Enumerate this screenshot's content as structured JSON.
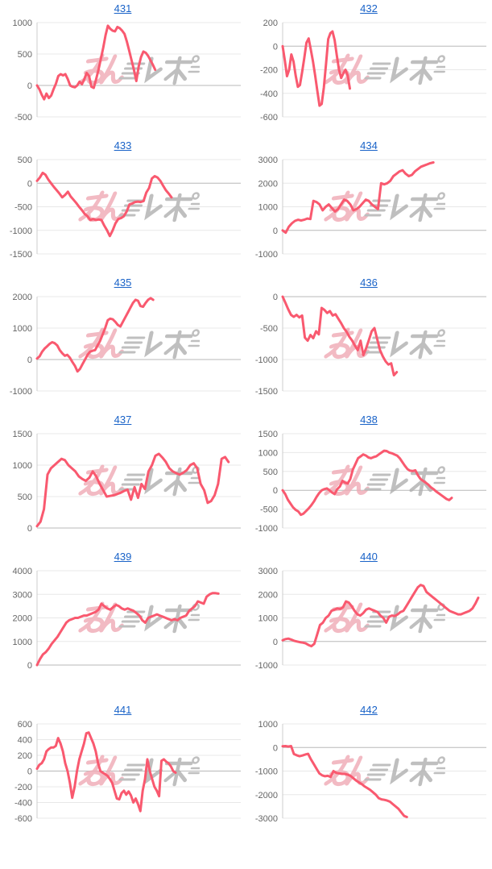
{
  "style": {
    "line_color": "#f9596f",
    "title_color": "#1a63c8",
    "axis_label_color": "#666666",
    "grid_color": "#e8e8e8",
    "zero_line_color": "#b8b8b8",
    "spine_color": "#cccccc",
    "watermark_pink": "#f0aab5",
    "watermark_gray": "#b0b0b0"
  },
  "watermark": {
    "text": "みんレポ"
  },
  "chart_data": [
    {
      "type": "line",
      "title": "431",
      "ticks": [
        1000,
        500,
        0,
        -500
      ],
      "ylim": [
        -500,
        1000
      ],
      "span": 0.58,
      "grid": "horizontal",
      "legend": "none",
      "values": [
        0,
        -60,
        -150,
        -220,
        -130,
        -200,
        -160,
        -60,
        30,
        150,
        180,
        160,
        180,
        100,
        0,
        -20,
        -30,
        0,
        60,
        20,
        100,
        200,
        150,
        -20,
        -40,
        100,
        250,
        420,
        600,
        800,
        950,
        900,
        870,
        860,
        930,
        910,
        870,
        820,
        700,
        550,
        400,
        250,
        70,
        300,
        450,
        540,
        520,
        470,
        400,
        330,
        250
      ]
    },
    {
      "type": "line",
      "title": "432",
      "ticks": [
        200,
        0,
        -200,
        -400,
        -600
      ],
      "ylim": [
        -600,
        200
      ],
      "span": 0.33,
      "grid": "horizontal",
      "legend": "none",
      "values": [
        0,
        -120,
        -255,
        -200,
        -70,
        -130,
        -250,
        -345,
        -330,
        -220,
        -100,
        30,
        65,
        -30,
        -130,
        -250,
        -380,
        -505,
        -490,
        -350,
        -150,
        60,
        110,
        125,
        50,
        -80,
        -200,
        -270,
        -230,
        -200,
        -250,
        -360
      ]
    },
    {
      "type": "line",
      "title": "433",
      "ticks": [
        500,
        0,
        -500,
        -1000,
        -1500
      ],
      "ylim": [
        -1500,
        500
      ],
      "span": 0.66,
      "grid": "horizontal",
      "legend": "none",
      "values": [
        50,
        120,
        220,
        180,
        80,
        0,
        -80,
        -150,
        -220,
        -300,
        -250,
        -180,
        -280,
        -350,
        -420,
        -500,
        -570,
        -650,
        -700,
        -780,
        -760,
        -780,
        -770,
        -780,
        -900,
        -1000,
        -1120,
        -1000,
        -850,
        -760,
        -740,
        -700,
        -600,
        -450,
        -430,
        -400,
        -390,
        -400,
        -380,
        -200,
        -100,
        100,
        150,
        120,
        50,
        -50,
        -150,
        -220,
        -300
      ]
    },
    {
      "type": "line",
      "title": "434",
      "ticks": [
        3000,
        2000,
        1000,
        0,
        -1000
      ],
      "ylim": [
        -1000,
        3000
      ],
      "span": 0.74,
      "grid": "horizontal",
      "legend": "none",
      "values": [
        0,
        -100,
        150,
        300,
        400,
        450,
        420,
        450,
        500,
        480,
        1250,
        1200,
        1100,
        850,
        1000,
        1100,
        950,
        800,
        900,
        1100,
        1300,
        1250,
        1100,
        850,
        900,
        1000,
        1150,
        1300,
        1250,
        1100,
        1000,
        900,
        2000,
        1950,
        2000,
        2100,
        2300,
        2400,
        2500,
        2550,
        2400,
        2300,
        2350,
        2500,
        2600,
        2700,
        2750,
        2800,
        2850,
        2880
      ]
    },
    {
      "type": "line",
      "title": "435",
      "ticks": [
        2000,
        1000,
        0,
        -1000
      ],
      "ylim": [
        -1000,
        2000
      ],
      "span": 0.57,
      "grid": "horizontal",
      "legend": "none",
      "values": [
        30,
        100,
        250,
        350,
        420,
        500,
        550,
        520,
        450,
        300,
        200,
        120,
        150,
        60,
        -80,
        -200,
        -380,
        -300,
        -150,
        0,
        150,
        250,
        280,
        300,
        450,
        600,
        800,
        1000,
        1250,
        1300,
        1280,
        1200,
        1100,
        1050,
        1200,
        1350,
        1500,
        1650,
        1800,
        1900,
        1870,
        1700,
        1680,
        1800,
        1900,
        1950,
        1900
      ]
    },
    {
      "type": "line",
      "title": "436",
      "ticks": [
        0,
        -500,
        -1000,
        -1500
      ],
      "ylim": [
        -1500,
        0
      ],
      "span": 0.56,
      "grid": "horizontal",
      "legend": "none",
      "values": [
        0,
        -100,
        -200,
        -290,
        -320,
        -290,
        -330,
        -300,
        -650,
        -700,
        -610,
        -660,
        -550,
        -600,
        -180,
        -210,
        -260,
        -230,
        -300,
        -280,
        -350,
        -420,
        -500,
        -560,
        -640,
        -700,
        -780,
        -850,
        -700,
        -930,
        -820,
        -690,
        -550,
        -500,
        -680,
        -850,
        -950,
        -1030,
        -1080,
        -1060,
        -1250,
        -1200
      ]
    },
    {
      "type": "line",
      "title": "437",
      "ticks": [
        1500,
        1000,
        500,
        0
      ],
      "ylim": [
        0,
        1500
      ],
      "span": 0.94,
      "grid": "horizontal",
      "legend": "none",
      "values": [
        30,
        100,
        300,
        850,
        950,
        1000,
        1050,
        1100,
        1080,
        1000,
        950,
        900,
        820,
        780,
        750,
        800,
        900,
        820,
        700,
        600,
        500,
        510,
        520,
        540,
        560,
        590,
        610,
        450,
        650,
        480,
        700,
        620,
        900,
        1000,
        1150,
        1180,
        1120,
        1050,
        950,
        900,
        870,
        850,
        880,
        920,
        1000,
        1030,
        950,
        700,
        600,
        400,
        430,
        520,
        700,
        1100,
        1130,
        1050
      ]
    },
    {
      "type": "line",
      "title": "438",
      "ticks": [
        1500,
        1000,
        500,
        0,
        -500,
        -1000
      ],
      "ylim": [
        -1000,
        1500
      ],
      "span": 0.83,
      "grid": "horizontal",
      "legend": "none",
      "values": [
        0,
        -100,
        -250,
        -350,
        -450,
        -520,
        -560,
        -650,
        -620,
        -550,
        -480,
        -400,
        -300,
        -180,
        -80,
        0,
        30,
        50,
        0,
        -60,
        -100,
        30,
        100,
        250,
        200,
        180,
        300,
        550,
        700,
        850,
        900,
        950,
        920,
        870,
        850,
        880,
        900,
        950,
        1000,
        1050,
        1040,
        1000,
        980,
        950,
        920,
        850,
        750,
        650,
        560,
        520,
        510,
        530,
        400,
        300,
        250,
        200,
        150,
        80,
        30,
        -30,
        -80,
        -130,
        -180,
        -230,
        -260,
        -200
      ]
    },
    {
      "type": "line",
      "title": "439",
      "ticks": [
        4000,
        3000,
        2000,
        1000,
        0
      ],
      "ylim": [
        0,
        4000
      ],
      "span": 0.89,
      "grid": "horizontal",
      "legend": "none",
      "values": [
        0,
        250,
        450,
        550,
        700,
        900,
        1050,
        1200,
        1400,
        1600,
        1800,
        1900,
        1950,
        2000,
        2000,
        2050,
        2100,
        2100,
        2150,
        2200,
        2250,
        2350,
        2600,
        2500,
        2400,
        2350,
        2450,
        2550,
        2500,
        2400,
        2350,
        2400,
        2350,
        2300,
        2200,
        2100,
        1900,
        1800,
        2000,
        2050,
        2100,
        2150,
        2100,
        2050,
        2000,
        1950,
        1900,
        1950,
        1900,
        2000,
        2050,
        2100,
        2300,
        2400,
        2500,
        2700,
        2650,
        2600,
        2900,
        3000,
        3050,
        3050,
        3030
      ]
    },
    {
      "type": "line",
      "title": "440",
      "ticks": [
        3000,
        2000,
        1000,
        0,
        -1000
      ],
      "ylim": [
        -1000,
        3000
      ],
      "span": 0.96,
      "grid": "horizontal",
      "legend": "none",
      "values": [
        50,
        100,
        120,
        80,
        30,
        0,
        -30,
        -50,
        -80,
        -150,
        -200,
        -100,
        300,
        700,
        800,
        1000,
        1100,
        1300,
        1350,
        1400,
        1380,
        1450,
        1700,
        1650,
        1500,
        1300,
        1150,
        1100,
        1200,
        1350,
        1400,
        1350,
        1300,
        1250,
        1100,
        1000,
        800,
        1050,
        1100,
        1080,
        1150,
        1250,
        1300,
        1500,
        1700,
        1900,
        2100,
        2300,
        2400,
        2350,
        2100,
        2000,
        1900,
        1800,
        1700,
        1600,
        1500,
        1400,
        1300,
        1250,
        1200,
        1150,
        1150,
        1200,
        1250,
        1300,
        1400,
        1600,
        1850
      ]
    },
    {
      "type": "line",
      "title": "441",
      "ticks": [
        600,
        400,
        200,
        0,
        -200,
        -400,
        -600
      ],
      "ylim": [
        -600,
        600
      ],
      "span": 0.68,
      "grid": "horizontal",
      "legend": "none",
      "values": [
        30,
        80,
        100,
        150,
        250,
        280,
        300,
        300,
        320,
        420,
        350,
        250,
        100,
        0,
        -150,
        -340,
        -200,
        0,
        150,
        250,
        350,
        480,
        490,
        420,
        350,
        250,
        100,
        0,
        -20,
        -40,
        -60,
        -100,
        -150,
        -250,
        -350,
        -360,
        -280,
        -250,
        -300,
        -260,
        -310,
        -400,
        -350,
        -420,
        -510,
        -250,
        -100,
        150,
        0,
        -100,
        -200,
        -250,
        -320,
        130,
        150,
        120,
        100,
        60,
        0,
        -20
      ]
    },
    {
      "type": "line",
      "title": "442",
      "ticks": [
        1000,
        0,
        -1000,
        -2000,
        -3000
      ],
      "ylim": [
        -3000,
        1000
      ],
      "span": 0.61,
      "grid": "horizontal",
      "legend": "none",
      "values": [
        50,
        60,
        40,
        60,
        -280,
        -330,
        -370,
        -340,
        -300,
        -270,
        -500,
        -700,
        -900,
        -1100,
        -1180,
        -1220,
        -1200,
        -1250,
        -1000,
        -1080,
        -1100,
        -1120,
        -1120,
        -1150,
        -1200,
        -1300,
        -1400,
        -1480,
        -1550,
        -1650,
        -1720,
        -1800,
        -1900,
        -2000,
        -2150,
        -2200,
        -2220,
        -2250,
        -2300,
        -2400,
        -2500,
        -2600,
        -2750,
        -2900,
        -2950
      ]
    }
  ]
}
